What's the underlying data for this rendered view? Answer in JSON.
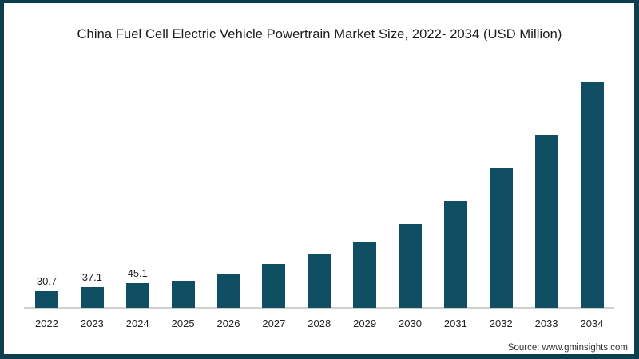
{
  "page": {
    "source": "Source: www.gminsights.com"
  },
  "colors": {
    "bar": "#104E64",
    "frame": "#0D3E4E",
    "axis": "#CFCFCF",
    "title_text": "#1B1B1B",
    "label_text": "#222222",
    "source_text": "#333333"
  },
  "chart_data": {
    "type": "bar",
    "title": "China Fuel Cell Electric Vehicle Powertrain Market Size, 2022- 2034 (USD Million)",
    "categories": [
      "2022",
      "2023",
      "2024",
      "2025",
      "2026",
      "2027",
      "2028",
      "2029",
      "2030",
      "2031",
      "2032",
      "2033",
      "2034"
    ],
    "values": [
      30.7,
      37.1,
      45.1,
      50,
      62,
      80,
      98,
      121,
      152,
      195,
      255,
      315,
      410
    ],
    "visible_value_labels": [
      "30.7",
      "37.1",
      "45.1"
    ],
    "xlabel": "",
    "ylabel": "",
    "unit": "USD Million",
    "ylim": [
      0,
      440
    ],
    "grid": false,
    "legend": false,
    "bar_color": "#104E64"
  }
}
